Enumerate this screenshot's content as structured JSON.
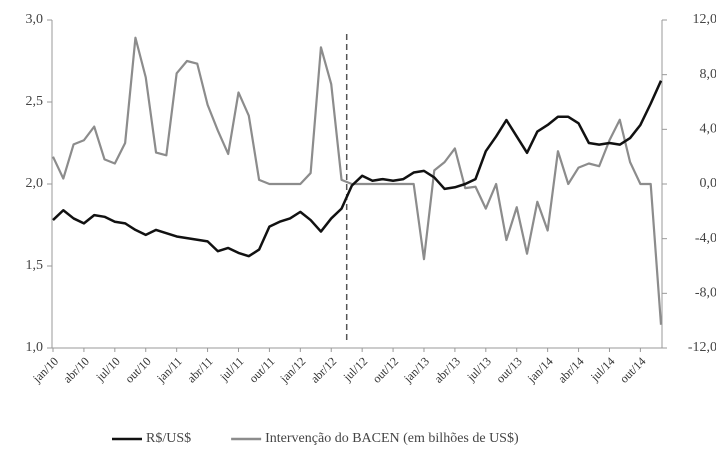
{
  "chart_data": {
    "type": "line",
    "categories": [
      "jan/10",
      null,
      null,
      "abr/10",
      null,
      null,
      "jul/10",
      null,
      null,
      "out/10",
      null,
      null,
      "jan/11",
      null,
      null,
      "abr/11",
      null,
      null,
      "jul/11",
      null,
      null,
      "out/11",
      null,
      null,
      "jan/12",
      null,
      null,
      "abr/12",
      null,
      null,
      "jul/12",
      null,
      null,
      "out/12",
      null,
      null,
      "jan/13",
      null,
      null,
      "abr/13",
      null,
      null,
      "jul/13",
      null,
      null,
      "out/13",
      null,
      null,
      "jan/14",
      null,
      null,
      "abr/14",
      null,
      null,
      "jul/14",
      null,
      null,
      "out/14",
      null,
      null
    ],
    "series": [
      {
        "name": "R$/US$",
        "color": "#111111",
        "axis": "y",
        "values": [
          1.78,
          1.84,
          1.79,
          1.76,
          1.81,
          1.8,
          1.77,
          1.76,
          1.72,
          1.69,
          1.72,
          1.7,
          1.68,
          1.67,
          1.66,
          1.65,
          1.59,
          1.61,
          1.58,
          1.56,
          1.6,
          1.74,
          1.77,
          1.79,
          1.83,
          1.78,
          1.71,
          1.79,
          1.85,
          1.99,
          2.05,
          2.02,
          2.03,
          2.02,
          2.03,
          2.07,
          2.08,
          2.04,
          1.97,
          1.98,
          2.0,
          2.03,
          2.2,
          2.29,
          2.39,
          2.29,
          2.19,
          2.32,
          2.36,
          2.41,
          2.41,
          2.37,
          2.25,
          2.24,
          2.25,
          2.24,
          2.28,
          2.36,
          2.49,
          2.63
        ]
      },
      {
        "name": "Intervenção do BACEN (em bilhões de US$)",
        "color": "#8c8c8c",
        "axis": "y2",
        "values": [
          2.0,
          0.4,
          2.9,
          3.2,
          4.2,
          1.8,
          1.5,
          3.0,
          10.7,
          7.8,
          2.3,
          2.1,
          8.1,
          9.0,
          8.8,
          5.8,
          3.9,
          2.2,
          6.7,
          5.0,
          0.3,
          0.0,
          0.0,
          0.0,
          0.0,
          0.8,
          10.0,
          7.3,
          0.3,
          0.0,
          0.0,
          0.0,
          0.0,
          0.0,
          0.0,
          0.0,
          -5.5,
          1.0,
          1.6,
          2.6,
          -0.3,
          -0.2,
          -1.8,
          0.0,
          -4.1,
          -1.7,
          -5.1,
          -1.3,
          -3.4,
          2.4,
          0.0,
          1.2,
          1.5,
          1.3,
          3.2,
          4.7,
          1.6,
          0.0,
          0.0,
          -10.3
        ]
      }
    ],
    "ylim": [
      1,
      3
    ],
    "yticks": [
      {
        "value": 1,
        "label": "1,0"
      },
      {
        "value": 1.5,
        "label": "1,5"
      },
      {
        "value": 2,
        "label": "2,0"
      },
      {
        "value": 2.5,
        "label": "2,5"
      },
      {
        "value": 3,
        "label": "3,0"
      }
    ],
    "y2lim": [
      -12,
      12
    ],
    "y2ticks": [
      {
        "value": -12,
        "label": "-12,0"
      },
      {
        "value": -8,
        "label": "-8,0"
      },
      {
        "value": -4,
        "label": "-4,0"
      },
      {
        "value": 0,
        "label": "0,0"
      },
      {
        "value": 4,
        "label": "4,0"
      },
      {
        "value": 8,
        "label": "8,0"
      },
      {
        "value": 12,
        "label": "12,0"
      }
    ],
    "legend": "bottom"
  }
}
